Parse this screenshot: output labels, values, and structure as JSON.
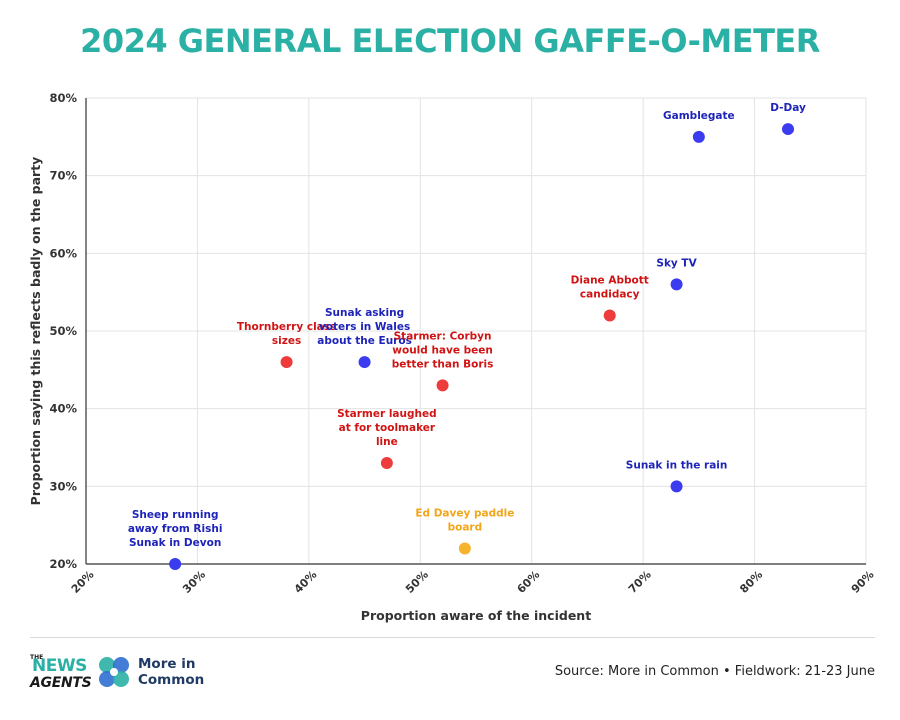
{
  "title": "2024 GENERAL ELECTION GAFFE-O-METER",
  "footer": {
    "source": "Source: More in Common • Fieldwork: 21-23 June",
    "news_agents": {
      "the": "THE",
      "line1": "NEWS",
      "line2": "AGENTS"
    },
    "more_in_common": {
      "line1": "More in",
      "line2": "Common"
    }
  },
  "colors": {
    "title": "#2ab0a4",
    "conservative": "#3b3bef",
    "labour": "#ee3b3b",
    "libdem": "#f6b42e"
  },
  "chart_data": {
    "type": "scatter",
    "title": "2024 GENERAL ELECTION GAFFE-O-METER",
    "xlabel": "Proportion aware of the incident",
    "ylabel": "Proportion saying this reflects badly on the party",
    "xlim": [
      20,
      90
    ],
    "ylim": [
      20,
      80
    ],
    "xticks": [
      "20%",
      "30%",
      "40%",
      "50%",
      "60%",
      "70%",
      "80%",
      "90%"
    ],
    "yticks": [
      "20%",
      "30%",
      "40%",
      "50%",
      "60%",
      "70%",
      "80%"
    ],
    "grid": true,
    "points": [
      {
        "label": [
          "D-Day"
        ],
        "x": 83,
        "y": 76,
        "color": "#3b3bef",
        "label_color": "#1e24b8"
      },
      {
        "label": [
          "Gamblegate"
        ],
        "x": 75,
        "y": 75,
        "color": "#3b3bef",
        "label_color": "#1e24b8"
      },
      {
        "label": [
          "Sky TV"
        ],
        "x": 73,
        "y": 56,
        "color": "#3b3bef",
        "label_color": "#1e24b8"
      },
      {
        "label": [
          "Diane Abbott",
          "candidacy"
        ],
        "x": 67,
        "y": 52,
        "color": "#ee3b3b",
        "label_color": "#d01414"
      },
      {
        "label": [
          "Thornberry class",
          "sizes"
        ],
        "x": 38,
        "y": 46,
        "color": "#ee3b3b",
        "label_color": "#d01414"
      },
      {
        "label": [
          "Sunak asking",
          "voters in Wales",
          "about the Euros"
        ],
        "x": 45,
        "y": 46,
        "color": "#3b3bef",
        "label_color": "#1e24b8"
      },
      {
        "label": [
          "Starmer: Corbyn",
          "would have been",
          "better than Boris"
        ],
        "x": 52,
        "y": 43,
        "color": "#ee3b3b",
        "label_color": "#d01414"
      },
      {
        "label": [
          "Starmer laughed",
          "at for toolmaker",
          "line"
        ],
        "x": 47,
        "y": 33,
        "color": "#ee3b3b",
        "label_color": "#d01414"
      },
      {
        "label": [
          "Sunak in the rain"
        ],
        "x": 73,
        "y": 30,
        "color": "#3b3bef",
        "label_color": "#1e24b8"
      },
      {
        "label": [
          "Ed Davey paddle",
          "board"
        ],
        "x": 54,
        "y": 22,
        "color": "#f6b42e",
        "label_color": "#f2a51a"
      },
      {
        "label": [
          "Sheep running",
          "away from Rishi",
          "Sunak in Devon"
        ],
        "x": 28,
        "y": 20,
        "color": "#3b3bef",
        "label_color": "#1e24b8"
      }
    ]
  }
}
